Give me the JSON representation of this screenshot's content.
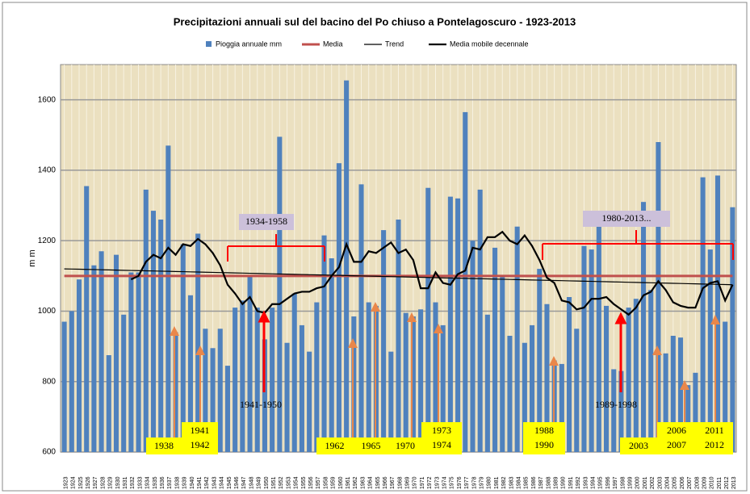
{
  "chart_data": {
    "type": "bar",
    "title": "Precipitazioni annuali  sul del bacino del Po chiuso a Pontelagoscuro - 1923-2013",
    "y_label": "m m",
    "categories": [
      "1923",
      "1924",
      "1925",
      "1926",
      "1927",
      "1928",
      "1929",
      "1930",
      "1931",
      "1932",
      "1933",
      "1934",
      "1935",
      "1936",
      "1937",
      "1938",
      "1939",
      "1940",
      "1941",
      "1942",
      "1943",
      "1944",
      "1945",
      "1946",
      "1947",
      "1948",
      "1949",
      "1950",
      "1951",
      "1952",
      "1953",
      "1954",
      "1955",
      "1956",
      "1957",
      "1958",
      "1959",
      "1960",
      "1961",
      "1962",
      "1963",
      "1964",
      "1965",
      "1966",
      "1967",
      "1968",
      "1969",
      "1970",
      "1971",
      "1972",
      "1973",
      "1974",
      "1975",
      "1976",
      "1977",
      "1978",
      "1979",
      "1980",
      "1981",
      "1982",
      "1983",
      "1984",
      "1985",
      "1986",
      "1987",
      "1988",
      "1989",
      "1990",
      "1991",
      "1992",
      "1993",
      "1994",
      "1995",
      "1996",
      "1997",
      "1998",
      "1999",
      "2000",
      "2001",
      "2002",
      "2003",
      "2004",
      "2005",
      "2006",
      "2007",
      "2008",
      "2009",
      "2010",
      "2011",
      "2012",
      "2013"
    ],
    "series": [
      {
        "name": "Pioggia annuale mm",
        "type": "bar",
        "color": "#4f81bd",
        "values": [
          970,
          1000,
          1090,
          1355,
          1130,
          1170,
          875,
          1160,
          990,
          1110,
          1110,
          1345,
          1285,
          1260,
          1470,
          940,
          1190,
          1045,
          1220,
          950,
          895,
          950,
          845,
          1010,
          1030,
          1100,
          1010,
          920,
          1010,
          1495,
          910,
          1050,
          960,
          885,
          1025,
          1215,
          1150,
          1420,
          1655,
          985,
          1360,
          1025,
          1015,
          1230,
          885,
          1260,
          995,
          985,
          1005,
          1350,
          1025,
          960,
          1325,
          1320,
          1565,
          1200,
          1345,
          990,
          1180,
          1100,
          930,
          1240,
          910,
          960,
          1120,
          1020,
          860,
          850,
          1040,
          950,
          1185,
          1175,
          1240,
          1015,
          835,
          830,
          1010,
          1035,
          1310,
          1060,
          1480,
          880,
          930,
          925,
          790,
          825,
          1380,
          1175,
          1385,
          970,
          1295
        ]
      },
      {
        "name": "Media",
        "type": "line",
        "color": "#c0504d",
        "width": 3,
        "values": [
          1100,
          1100,
          1100,
          1100,
          1100,
          1100,
          1100,
          1100,
          1100,
          1100,
          1100,
          1100,
          1100,
          1100,
          1100,
          1100,
          1100,
          1100,
          1100,
          1100,
          1100,
          1100,
          1100,
          1100,
          1100,
          1100,
          1100,
          1100,
          1100,
          1100,
          1100,
          1100,
          1100,
          1100,
          1100,
          1100,
          1100,
          1100,
          1100,
          1100,
          1100,
          1100,
          1100,
          1100,
          1100,
          1100,
          1100,
          1100,
          1100,
          1100,
          1100,
          1100,
          1100,
          1100,
          1100,
          1100,
          1100,
          1100,
          1100,
          1100,
          1100,
          1100,
          1100,
          1100,
          1100,
          1100,
          1100,
          1100,
          1100,
          1100,
          1100,
          1100,
          1100,
          1100,
          1100,
          1100,
          1100,
          1100,
          1100,
          1100,
          1100,
          1100,
          1100,
          1100,
          1100,
          1100,
          1100,
          1100,
          1100,
          1100,
          1100
        ]
      },
      {
        "name": "Trend",
        "type": "line",
        "color": "#000000",
        "width": 1.2,
        "values": [
          1120,
          1119.5,
          1119,
          1118.5,
          1118,
          1117.5,
          1117,
          1116.5,
          1116,
          1115.5,
          1115,
          1114.5,
          1114,
          1113.5,
          1113,
          1112.5,
          1112,
          1111.5,
          1111,
          1110.5,
          1110,
          1109.5,
          1109,
          1108.5,
          1108,
          1107.5,
          1107,
          1106.5,
          1106,
          1105.5,
          1105,
          1104.5,
          1104,
          1103.5,
          1103,
          1102.5,
          1102,
          1101.5,
          1101,
          1100.5,
          1100,
          1099.5,
          1099,
          1098.5,
          1098,
          1097.5,
          1097,
          1096.5,
          1096,
          1095.5,
          1095,
          1094.5,
          1094,
          1093.5,
          1093,
          1092.5,
          1092,
          1091.5,
          1091,
          1090.5,
          1090,
          1089.5,
          1089,
          1088.5,
          1088,
          1087.5,
          1087,
          1086.5,
          1086,
          1085.5,
          1085,
          1084.5,
          1084,
          1083.5,
          1083,
          1082.5,
          1082,
          1081.5,
          1081,
          1080.5,
          1080,
          1079.5,
          1079,
          1078.5,
          1078,
          1077.5,
          1077,
          1076.5,
          1076,
          1075.5,
          1075
        ]
      },
      {
        "name": "Media mobile decennale",
        "type": "line",
        "color": "#000000",
        "width": 2.2,
        "values": [
          null,
          null,
          null,
          null,
          null,
          null,
          null,
          null,
          null,
          1090,
          1100,
          1140,
          1160,
          1150,
          1180,
          1160,
          1190,
          1185,
          1205,
          1190,
          1165,
          1130,
          1075,
          1050,
          1020,
          1040,
          1000,
          995,
          1020,
          1020,
          1035,
          1050,
          1055,
          1055,
          1065,
          1070,
          1100,
          1125,
          1190,
          1140,
          1140,
          1170,
          1165,
          1180,
          1195,
          1165,
          1175,
          1145,
          1065,
          1065,
          1110,
          1080,
          1075,
          1105,
          1115,
          1180,
          1175,
          1210,
          1210,
          1225,
          1200,
          1190,
          1215,
          1185,
          1145,
          1095,
          1080,
          1030,
          1025,
          1005,
          1010,
          1035,
          1035,
          1040,
          1020,
          1005,
          990,
          1010,
          1045,
          1055,
          1085,
          1060,
          1025,
          1015,
          1010,
          1010,
          1065,
          1080,
          1085,
          1030,
          1075
        ]
      }
    ],
    "ylim": [
      600,
      1700
    ],
    "yticks": [
      600,
      800,
      1000,
      1200,
      1400,
      1600
    ],
    "grid": true,
    "annotations": {
      "periods": [
        "1934-1958",
        "1980-2013..."
      ],
      "decades": [
        "1941-1950",
        "1989-1998"
      ],
      "years": [
        [
          "1938"
        ],
        [
          "1941",
          "1942"
        ],
        [
          "1962"
        ],
        [
          "1965"
        ],
        [
          "1970"
        ],
        [
          "1973",
          "1974"
        ],
        [
          "1988",
          "1990"
        ],
        [
          "2003"
        ],
        [
          "2006",
          "2007"
        ],
        [
          "2011",
          "2012"
        ]
      ]
    }
  }
}
